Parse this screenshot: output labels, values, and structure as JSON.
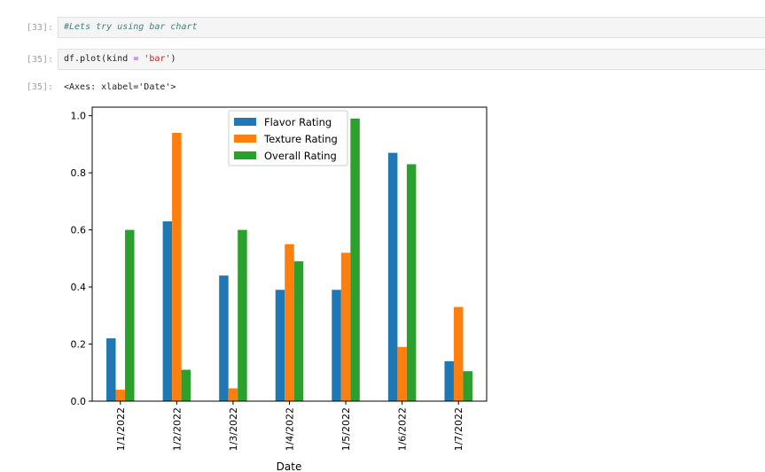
{
  "notebook": {
    "cells": [
      {
        "prompt": "[33]:",
        "code": "#Lets try using bar chart"
      },
      {
        "prompt": "[35]:",
        "code_parts": {
          "obj": "df",
          "dot": ".",
          "method": "plot",
          "open": "(",
          "arg": "kind",
          "eq": "=",
          "value": "'bar'",
          "close": ")"
        }
      },
      {
        "prompt": "[35]:",
        "output": "<Axes: xlabel='Date'>"
      }
    ]
  },
  "chart_data": {
    "type": "bar",
    "title": "",
    "xlabel": "Date",
    "ylabel": "",
    "ylim": [
      0.0,
      1.03
    ],
    "yticks": [
      "0.0",
      "0.2",
      "0.4",
      "0.6",
      "0.8",
      "1.0"
    ],
    "categories": [
      "1/1/2022",
      "1/2/2022",
      "1/3/2022",
      "1/4/2022",
      "1/5/2022",
      "1/6/2022",
      "1/7/2022"
    ],
    "legend_position": "top-center",
    "grid": false,
    "series": [
      {
        "name": "Flavor Rating",
        "color": "#1f77b4",
        "values": [
          0.22,
          0.63,
          0.44,
          0.39,
          0.39,
          0.87,
          0.14
        ]
      },
      {
        "name": "Texture Rating",
        "color": "#ff7f0e",
        "values": [
          0.04,
          0.94,
          0.045,
          0.55,
          0.52,
          0.19,
          0.33
        ]
      },
      {
        "name": "Overall Rating",
        "color": "#2ca02c",
        "values": [
          0.6,
          0.11,
          0.6,
          0.49,
          0.99,
          0.83,
          0.105
        ]
      }
    ]
  }
}
